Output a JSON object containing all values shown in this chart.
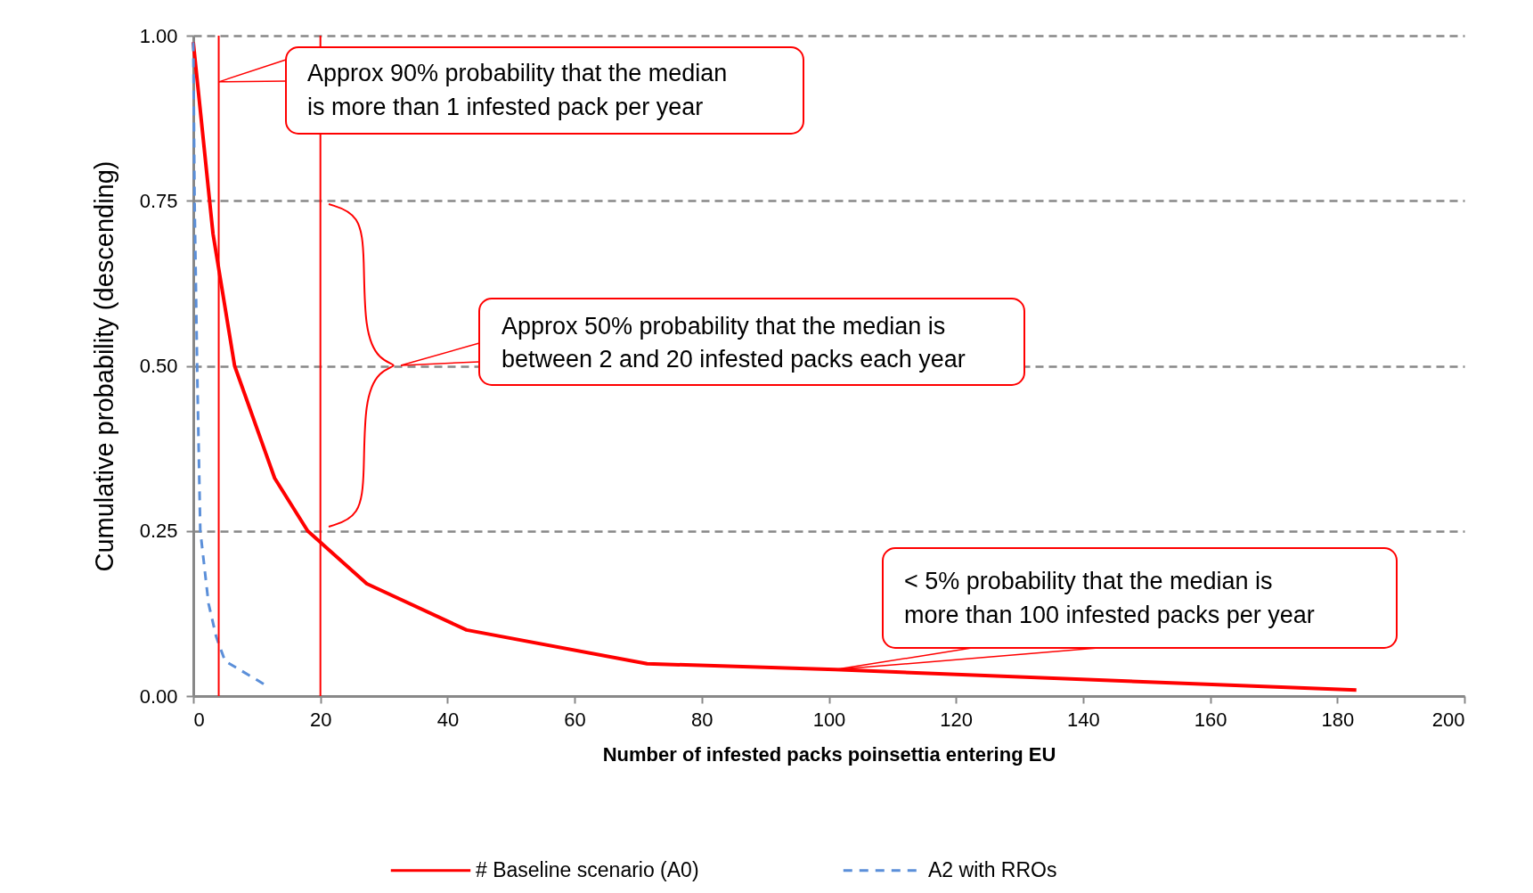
{
  "chart_data": {
    "type": "line",
    "xlabel": "Number of infested packs poinsettia entering EU",
    "ylabel": "Cumulative probability (descending)",
    "xlim": [
      0,
      200
    ],
    "xticks": [
      0,
      20,
      40,
      60,
      80,
      100,
      120,
      140,
      160,
      180,
      200
    ],
    "ylim": [
      0,
      1
    ],
    "yticks": [
      {
        "value": 0,
        "label": "0.00"
      },
      {
        "value": 0.25,
        "label": "0.25"
      },
      {
        "value": 0.5,
        "label": "0.50"
      },
      {
        "value": 0.75,
        "label": "0.75"
      },
      {
        "value": 1,
        "label": "1.00"
      }
    ],
    "grid": "y",
    "legend": "bottom",
    "series": [
      {
        "name": "# Baseline scenario (A0)",
        "color": "#ff0000",
        "line_style": "solid",
        "x": [
          0,
          3.1,
          6.5,
          12.8,
          18,
          27.3,
          43,
          71.4,
          101,
          183
        ],
        "values": [
          0.99,
          0.7,
          0.5,
          0.33,
          0.25,
          0.17,
          0.1,
          0.049,
          0.04,
          0.009
        ]
      },
      {
        "name": "A2 with RROs",
        "color": "#5b8fd9",
        "line_style": "dashed",
        "x": [
          0,
          0.2,
          0.6,
          1.1,
          2.4,
          3.6,
          5,
          11.3
        ],
        "values": [
          0.99,
          0.75,
          0.5,
          0.25,
          0.14,
          0.09,
          0.053,
          0.017
        ]
      }
    ],
    "ref_lines": [
      {
        "axis": "x",
        "value": 4,
        "color": "#ff0000"
      },
      {
        "axis": "x",
        "value": 20,
        "color": "#ff0000"
      }
    ],
    "annotations": [
      {
        "text": "Approx 90% probability that the median is more than 1 infested pack per year",
        "x": 4,
        "y": 0.93
      },
      "Approx 50% probability that the median is between 2 and 20 infested packs each year",
      {
        "text": "< 5% probability that the median is more than 100 infested packs per year",
        "x": 101,
        "y": 0.04
      }
    ]
  }
}
